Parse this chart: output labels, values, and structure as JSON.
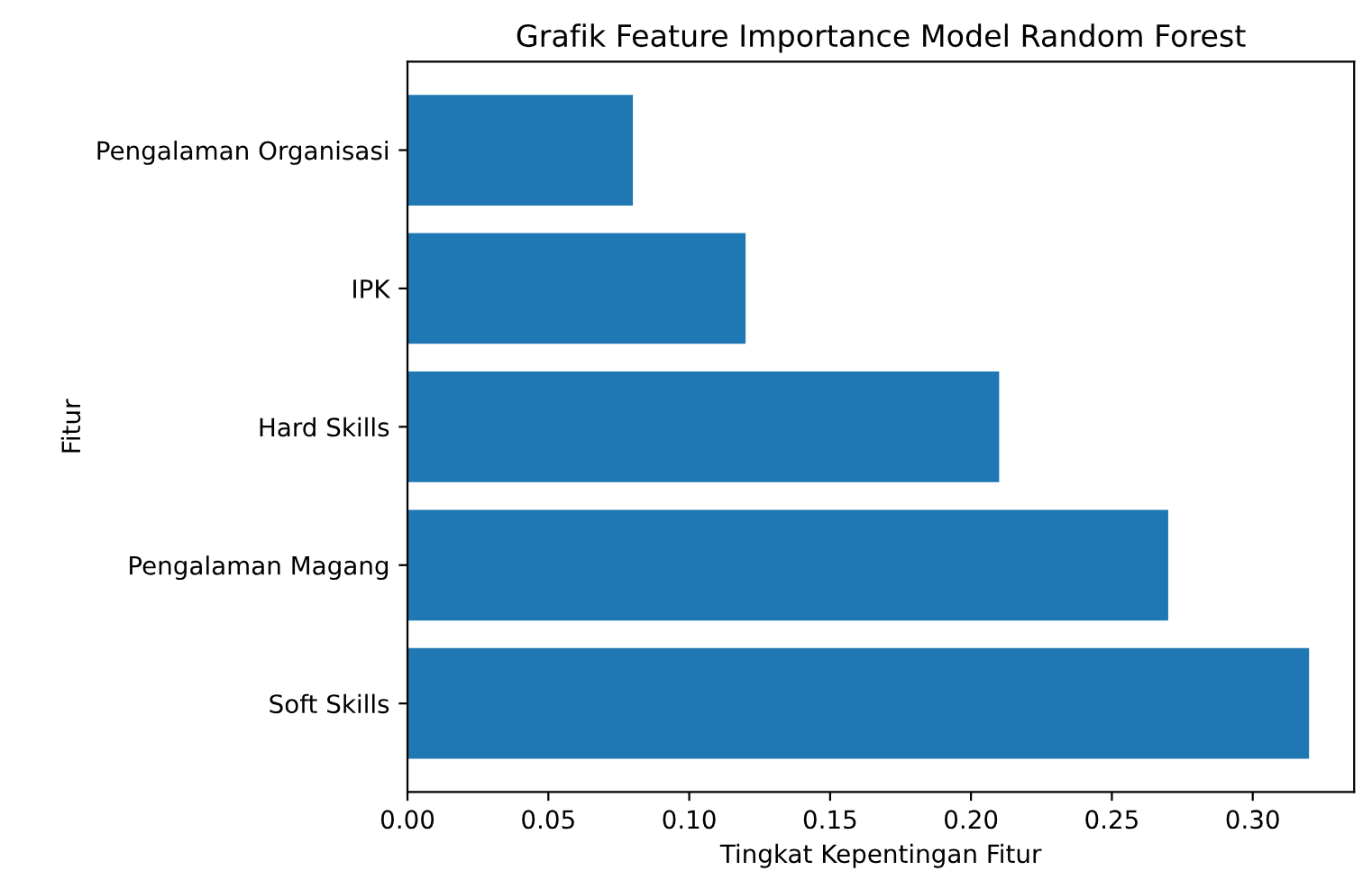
{
  "chart_data": {
    "type": "bar",
    "orientation": "horizontal",
    "title": "Grafik Feature Importance Model Random Forest",
    "xlabel": "Tingkat Kepentingan Fitur",
    "ylabel": "Fitur",
    "categories": [
      "Pengalaman Organisasi",
      "IPK",
      "Hard Skills",
      "Pengalaman Magang",
      "Soft Skills"
    ],
    "values": [
      0.08,
      0.12,
      0.21,
      0.27,
      0.32
    ],
    "color": "#1f77b4",
    "xlim": [
      0,
      0.336
    ],
    "xticks": [
      {
        "value": 0,
        "label": "0.00"
      },
      0.05,
      {
        "value": 0.1,
        "label": "0.10"
      },
      0.15,
      {
        "value": 0.2,
        "label": "0.20"
      },
      0.25,
      {
        "value": 0.3,
        "label": "0.30"
      }
    ],
    "grid": false
  }
}
